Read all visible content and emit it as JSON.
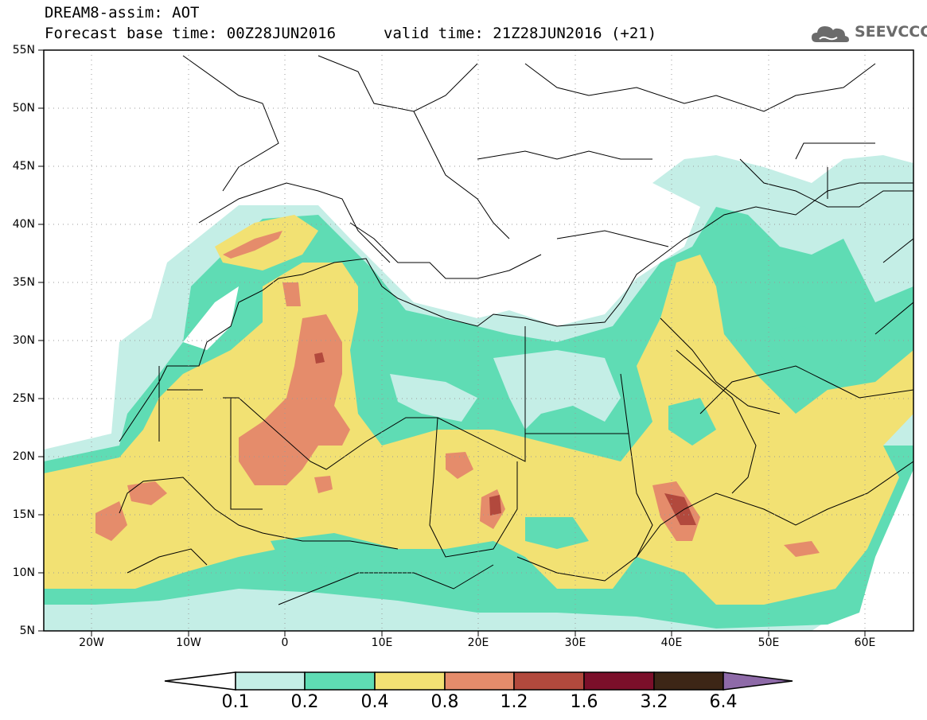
{
  "header": {
    "title": "DREAM8-assim: AOT",
    "forecast_base": "Forecast base time: 00Z28JUN2016",
    "valid_time": "valid time: 21Z28JUN2016 (+21)",
    "logo_text": "SEEVCCC"
  },
  "map": {
    "lat_labels": [
      "55N",
      "50N",
      "45N",
      "40N",
      "35N",
      "30N",
      "25N",
      "20N",
      "15N",
      "10N",
      "5N"
    ],
    "lon_labels": [
      "20W",
      "10W",
      "0",
      "10E",
      "20E",
      "30E",
      "40E",
      "50E",
      "60E"
    ],
    "lon_range": [
      -25,
      65
    ],
    "lat_range": [
      5,
      55
    ]
  },
  "colorbar": {
    "labels": [
      "0.1",
      "0.2",
      "0.4",
      "0.8",
      "1.2",
      "1.6",
      "3.2",
      "6.4"
    ],
    "colors": [
      "#ffffff",
      "#c4eee6",
      "#5fdcb4",
      "#f2e173",
      "#e58c6b",
      "#b2493d",
      "#7b0f2a",
      "#3d2616",
      "#8e6aa8"
    ]
  }
}
